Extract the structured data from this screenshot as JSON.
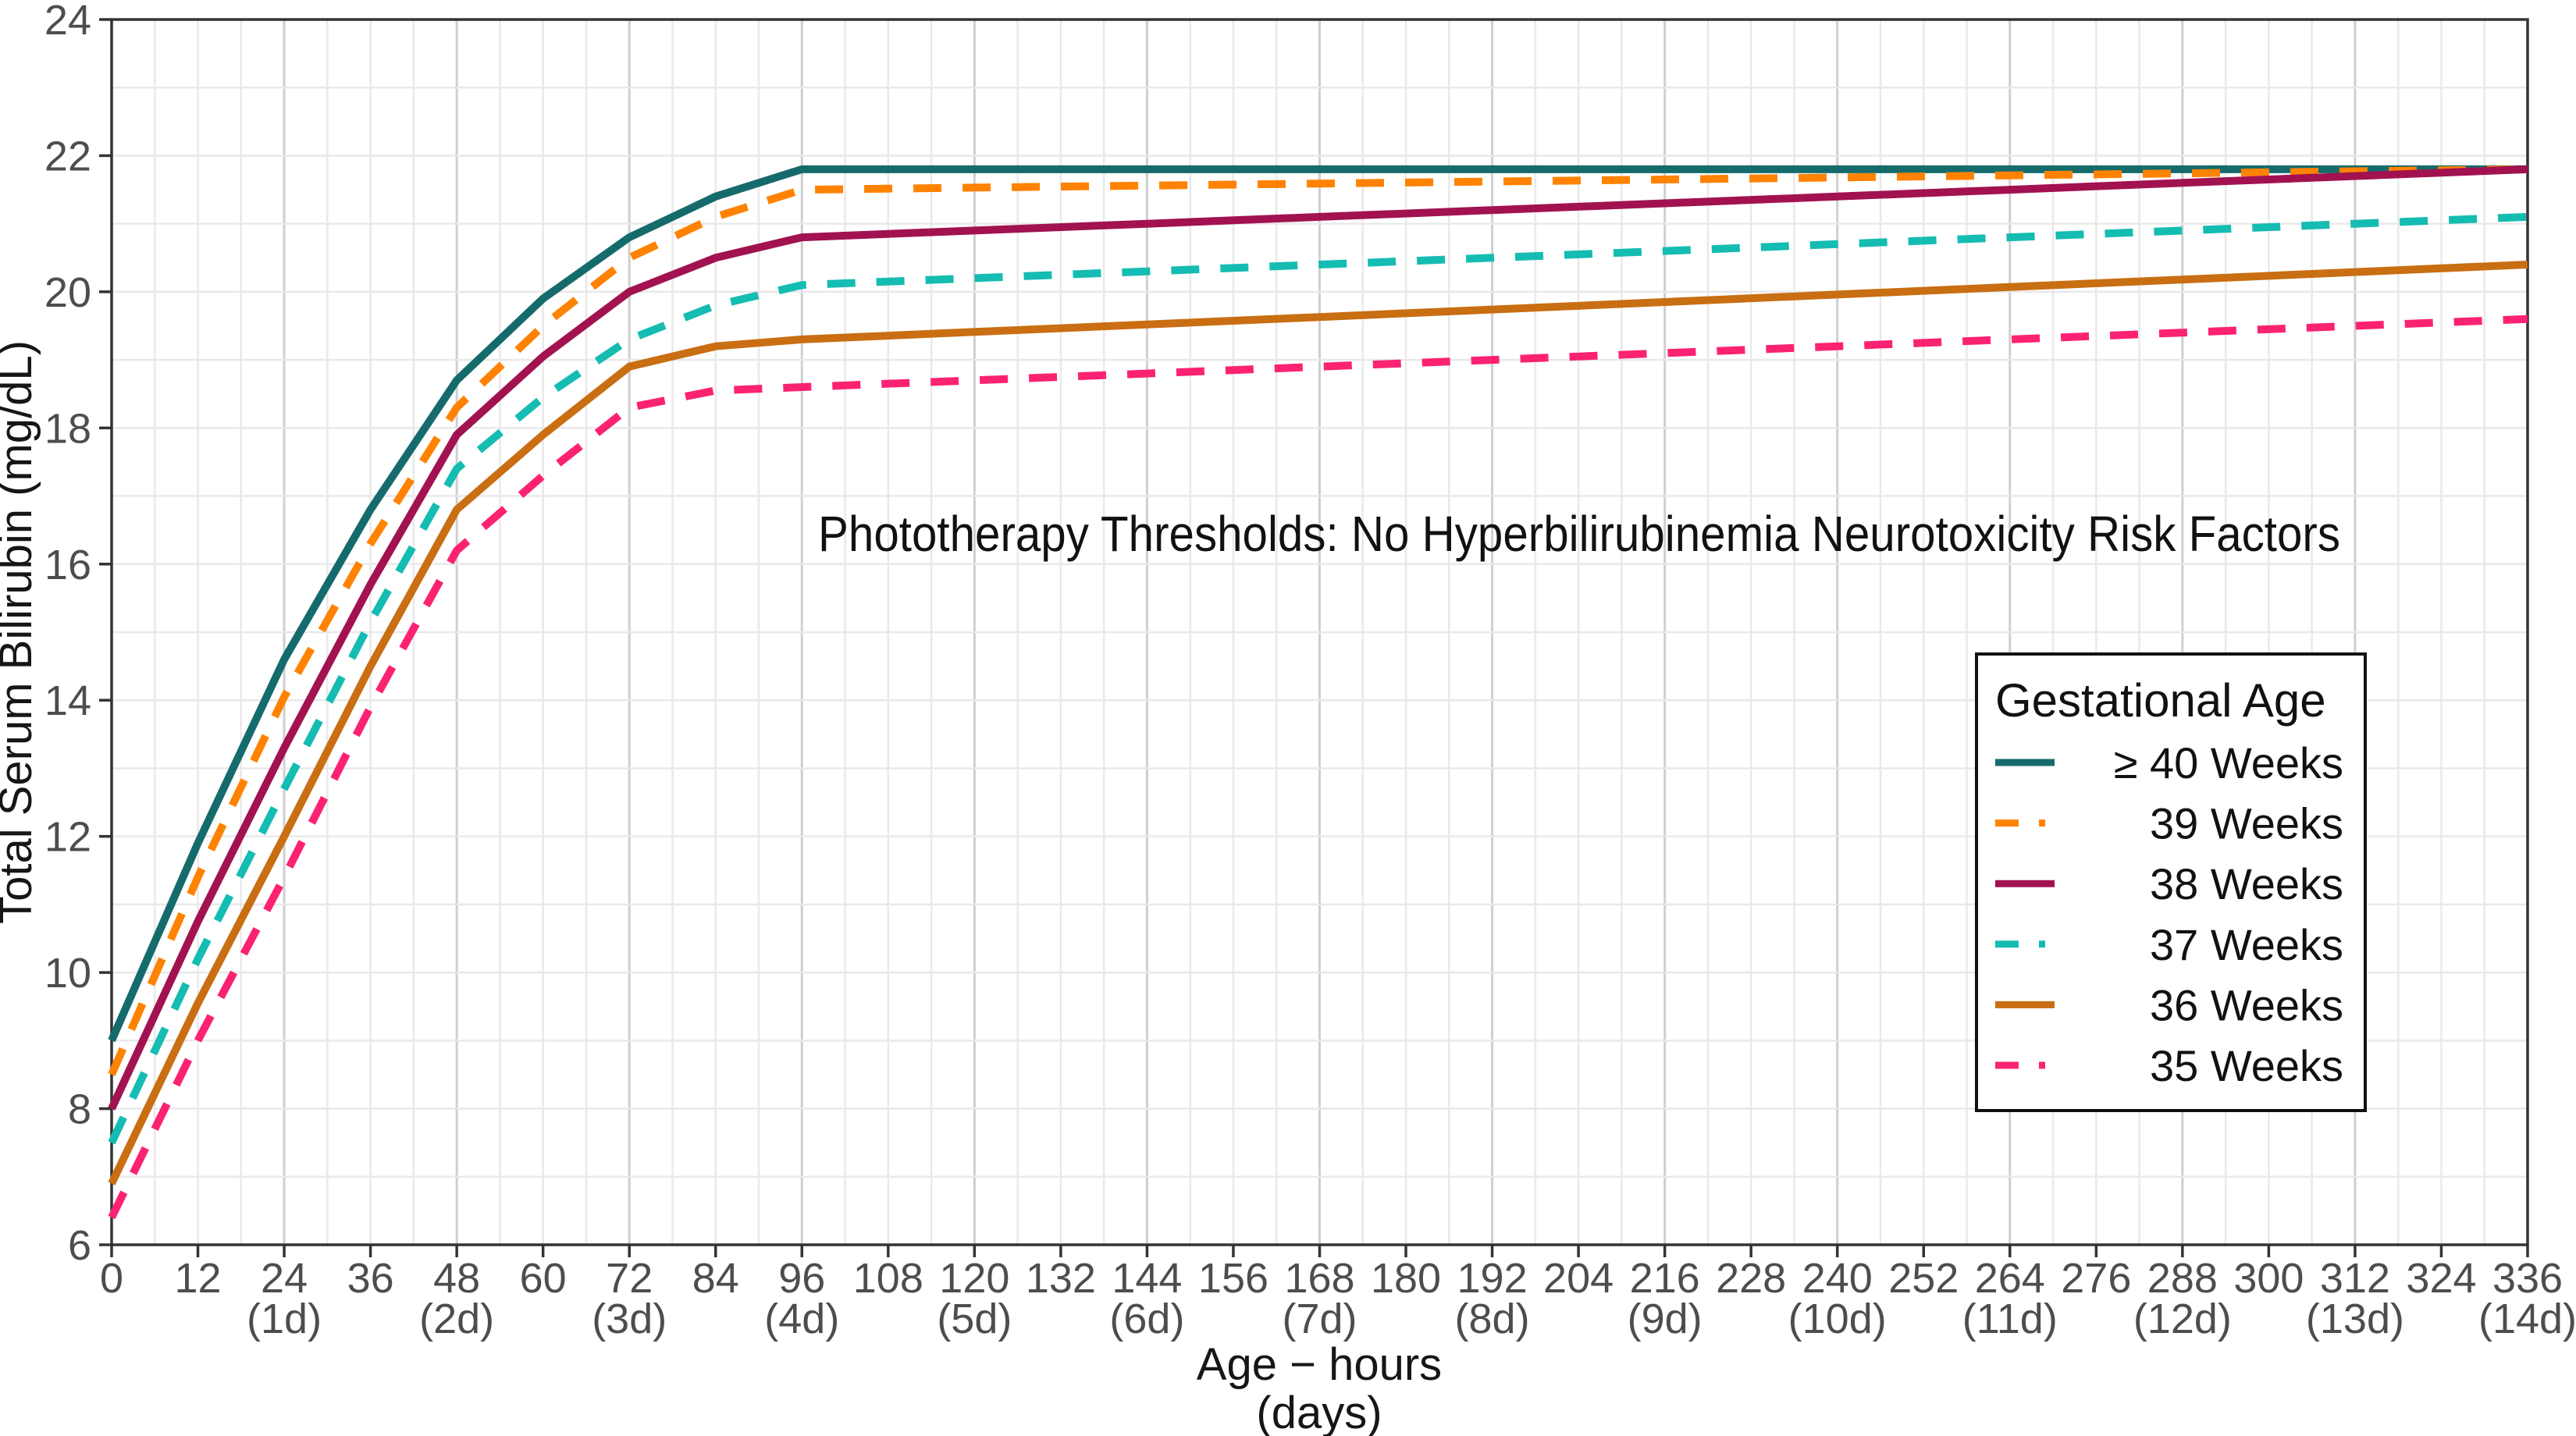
{
  "figure": {
    "plot_title": "Phototherapy Thresholds:  No Hyperbilirubinemia Neurotoxicity Risk Factors",
    "x_axis_title": "Age − hours",
    "x_axis_subtitle": "(days)",
    "y_axis_title": "Total Serum Bilirubin (mg/dL)"
  },
  "legend": {
    "title": "Gestational Age"
  },
  "chart_data": {
    "type": "line",
    "title": "Phototherapy Thresholds:  No Hyperbilirubinemia Neurotoxicity Risk Factors",
    "xlabel": "Age − hours (days)",
    "ylabel": "Total Serum Bilirubin (mg/dL)",
    "xlim": [
      0,
      336
    ],
    "ylim": [
      6,
      24
    ],
    "grid": "on",
    "legend_position": "inside-right",
    "legend_title": "Gestational Age",
    "x_ticks": [
      0,
      12,
      24,
      36,
      48,
      60,
      72,
      84,
      96,
      108,
      120,
      132,
      144,
      156,
      168,
      180,
      192,
      204,
      216,
      228,
      240,
      252,
      264,
      276,
      288,
      300,
      312,
      324,
      336
    ],
    "x_day_labels": [
      {
        "hour": 24,
        "label": "(1d)"
      },
      {
        "hour": 48,
        "label": "(2d)"
      },
      {
        "hour": 72,
        "label": "(3d)"
      },
      {
        "hour": 96,
        "label": "(4d)"
      },
      {
        "hour": 120,
        "label": "(5d)"
      },
      {
        "hour": 144,
        "label": "(6d)"
      },
      {
        "hour": 168,
        "label": "(7d)"
      },
      {
        "hour": 192,
        "label": "(8d)"
      },
      {
        "hour": 216,
        "label": "(9d)"
      },
      {
        "hour": 240,
        "label": "(10d)"
      },
      {
        "hour": 264,
        "label": "(11d)"
      },
      {
        "hour": 288,
        "label": "(12d)"
      },
      {
        "hour": 312,
        "label": "(13d)"
      },
      {
        "hour": 336,
        "label": "(14d)"
      }
    ],
    "y_ticks": [
      6,
      8,
      10,
      12,
      14,
      16,
      18,
      20,
      22,
      24
    ],
    "x": [
      0,
      12,
      24,
      36,
      48,
      60,
      72,
      84,
      96,
      120,
      144,
      168,
      192,
      216,
      240,
      264,
      288,
      312,
      336
    ],
    "series": [
      {
        "name": "≥ 40 Weeks",
        "gestational_age_weeks": "≥40",
        "color": "#156b6c",
        "style": "solid",
        "values": [
          9.0,
          11.9,
          14.6,
          16.8,
          18.7,
          19.9,
          20.8,
          21.4,
          21.8,
          21.8,
          21.8,
          21.8,
          21.8,
          21.8,
          21.8,
          21.8,
          21.8,
          21.8,
          21.8
        ]
      },
      {
        "name": "39 Weeks",
        "gestational_age_weeks": "39",
        "color": "#ff8200",
        "style": "dashed",
        "values": [
          8.5,
          11.4,
          14.05,
          16.3,
          18.3,
          19.5,
          20.5,
          21.1,
          21.5,
          21.53,
          21.56,
          21.59,
          21.62,
          21.65,
          21.68,
          21.71,
          21.74,
          21.77,
          21.8
        ]
      },
      {
        "name": "38 Weeks",
        "gestational_age_weeks": "38",
        "color": "#a21250",
        "style": "solid",
        "values": [
          8.0,
          10.75,
          13.3,
          15.7,
          17.9,
          19.05,
          20.0,
          20.5,
          20.8,
          20.9,
          21.0,
          21.1,
          21.2,
          21.3,
          21.4,
          21.5,
          21.6,
          21.7,
          21.8
        ]
      },
      {
        "name": "37 Weeks",
        "gestational_age_weeks": "37",
        "color": "#15bcb2",
        "style": "dashed",
        "values": [
          7.5,
          10.2,
          12.7,
          15.15,
          17.4,
          18.45,
          19.3,
          19.8,
          20.1,
          20.2,
          20.3,
          20.4,
          20.5,
          20.6,
          20.7,
          20.8,
          20.9,
          21.0,
          21.1
        ]
      },
      {
        "name": "36 Weeks",
        "gestational_age_weeks": "36",
        "color": "#c96e12",
        "style": "solid",
        "values": [
          6.9,
          9.55,
          12.0,
          14.5,
          16.8,
          17.9,
          18.9,
          19.2,
          19.3,
          19.41,
          19.52,
          19.63,
          19.74,
          19.85,
          19.96,
          20.07,
          20.18,
          20.29,
          20.4
        ]
      },
      {
        "name": "35 Weeks",
        "gestational_age_weeks": "35",
        "color": "#fc2272",
        "style": "dashed",
        "values": [
          6.4,
          9.0,
          11.4,
          13.9,
          16.2,
          17.3,
          18.3,
          18.55,
          18.6,
          18.7,
          18.8,
          18.9,
          19.0,
          19.1,
          19.2,
          19.3,
          19.4,
          19.5,
          19.6
        ]
      }
    ],
    "colors": {
      "grid_minor": "#e9e9e9",
      "grid_major": "#cfcfcf",
      "axis": "#333333",
      "tick_text": "#4d4d4d"
    }
  }
}
